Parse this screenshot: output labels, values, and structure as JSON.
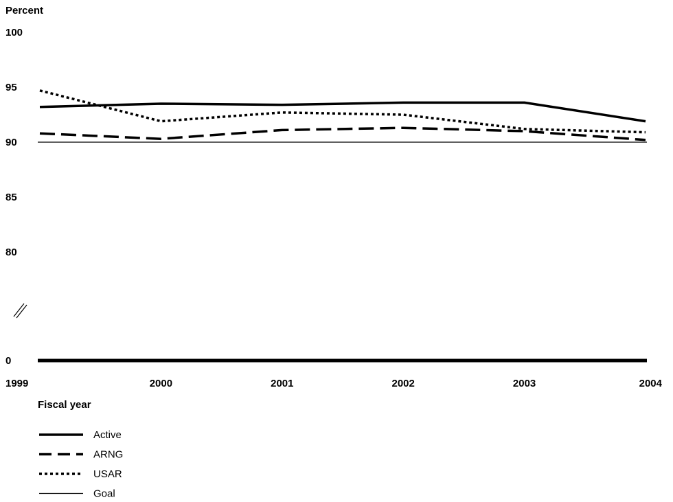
{
  "chart_data": {
    "type": "line",
    "ylabel": "Percent",
    "xlabel": "Fiscal year",
    "x": [
      "1999",
      "2000",
      "2001",
      "2002",
      "2003",
      "2004"
    ],
    "y_ticks": [
      "100",
      "95",
      "90",
      "85",
      "80",
      "0"
    ],
    "y_break": true,
    "grid": false,
    "legend": "bottom-left",
    "series": [
      {
        "name": "Active",
        "values": [
          93.2,
          93.5,
          93.4,
          93.6,
          93.6,
          91.9
        ],
        "style": "solid-thick"
      },
      {
        "name": "ARNG",
        "values": [
          90.8,
          90.3,
          91.1,
          91.3,
          91.0,
          90.2
        ],
        "style": "dashed"
      },
      {
        "name": "USAR",
        "values": [
          94.7,
          91.9,
          92.7,
          92.5,
          91.2,
          90.9
        ],
        "style": "dotted"
      },
      {
        "name": "Goal",
        "values": [
          90,
          90,
          90,
          90,
          90,
          90
        ],
        "style": "solid-thin"
      }
    ]
  }
}
